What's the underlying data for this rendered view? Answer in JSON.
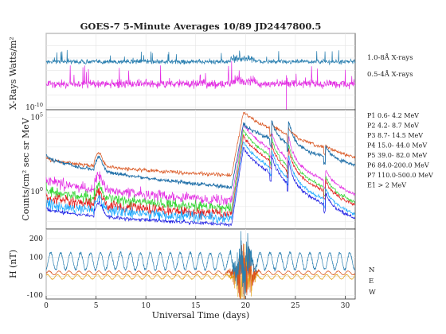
{
  "chart_data": {
    "type": "line",
    "title": "GOES-7 5-Minute Averages 10/89 JD2447800.5",
    "xlabel": "Universal Time (days)",
    "xlim": [
      0,
      31
    ],
    "x_ticks": [
      "0",
      "5",
      "10",
      "15",
      "20",
      "25",
      "30"
    ],
    "x_tick_values": [
      0,
      5,
      10,
      15,
      20,
      25,
      30
    ],
    "grid": true,
    "panels": [
      {
        "ylabel": "X-Rays Watts/m²",
        "yscale": "log",
        "ylim_log10": [
          -10.2,
          -4.0
        ],
        "y_tick_labels": [
          {
            "base": "10",
            "exp": "-10",
            "value_log10": -10
          }
        ],
        "series": [
          {
            "name": "1.0-8Å X-rays",
            "color": "#2a7fb0",
            "baseline_log10": -6.3,
            "x_start": 0,
            "x_end": 31
          },
          {
            "name": "0.5-4Å X-rays",
            "color": "#e32ee3",
            "baseline_log10": -8.1,
            "x_start": 0,
            "x_end": 31
          }
        ]
      },
      {
        "ylabel": "Counts/cm² sec sr MeV",
        "yscale": "log",
        "ylim_log10": [
          -2.5,
          5.5
        ],
        "y_tick_labels": [
          {
            "base": "10",
            "exp": "5",
            "value_log10": 5
          },
          {
            "base": "10",
            "exp": "0",
            "value_log10": 0
          }
        ],
        "series": [
          {
            "name": "P1  0.6-  4.2 MeV",
            "color": "#d9541e",
            "pre_start": 2.3,
            "pre_end": 1.1,
            "peak": 5.4,
            "post_end": 2.3
          },
          {
            "name": "P2  4.2-  8.7 MeV",
            "color": "#e32ee3",
            "pre_start": 0.9,
            "pre_end": -0.6,
            "peak": 4.6,
            "post_end": -0.2
          },
          {
            "name": "P3  8.7- 14.5 MeV",
            "color": "#33d633",
            "pre_start": 0.2,
            "pre_end": -1.1,
            "peak": 4.2,
            "post_end": -0.7
          },
          {
            "name": "P4  15.0- 44.0 MeV",
            "color": "#e31a1a",
            "pre_start": -0.3,
            "pre_end": -1.5,
            "peak": 3.8,
            "post_end": -0.9
          },
          {
            "name": "P5  39.0- 82.0 MeV",
            "color": "#19a8ff",
            "pre_start": -0.7,
            "pre_end": -1.8,
            "peak": 3.4,
            "post_end": -1.5
          },
          {
            "name": "P6  84.0-200.0 MeV",
            "color": "#1a1ae3",
            "pre_start": -1.1,
            "pre_end": -2.2,
            "peak": 3.0,
            "post_end": -1.8
          },
          {
            "name": "P7 110.0-500.0 MeV",
            "color": "#222222",
            "pre_start": -1.3,
            "pre_end": -2.3,
            "peak": 2.6,
            "post_end": -2.0
          },
          {
            "name": "E1 > 2 MeV",
            "color": "#1f6fa8",
            "pre_start": 2.5,
            "pre_end": 0.3,
            "peak": 4.6,
            "post_end": 1.8
          }
        ],
        "event_day": 18.6
      },
      {
        "ylabel": "H (nT)",
        "yscale": "linear",
        "ylim": [
          -120,
          250
        ],
        "y_ticks": [
          -100,
          0,
          100,
          200
        ],
        "series": [
          {
            "name": "N",
            "color": "#2a7fb0",
            "mean": 80,
            "amplitude": 45
          },
          {
            "name": "E",
            "color": "#d9541e",
            "mean": 18,
            "amplitude": 10
          },
          {
            "name": "W",
            "color": "#e3a21a",
            "mean": -3,
            "amplitude": 12
          }
        ],
        "storm_day": 19.8
      }
    ]
  }
}
